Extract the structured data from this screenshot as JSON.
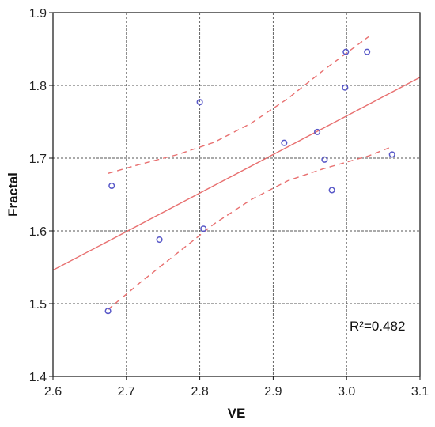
{
  "chart_data": {
    "type": "scatter",
    "xlabel": "VE",
    "ylabel": "Fractal",
    "xlim": [
      2.6,
      3.1
    ],
    "ylim": [
      1.4,
      1.9
    ],
    "xticks": [
      "2.6",
      "2.7",
      "2.8",
      "2.9",
      "3.0",
      "3.1"
    ],
    "yticks": [
      "1.4",
      "1.5",
      "1.6",
      "1.7",
      "1.8",
      "1.9"
    ],
    "grid": true,
    "points": [
      {
        "x": 2.675,
        "y": 1.49
      },
      {
        "x": 2.68,
        "y": 1.662
      },
      {
        "x": 2.745,
        "y": 1.588
      },
      {
        "x": 2.8,
        "y": 1.777
      },
      {
        "x": 2.805,
        "y": 1.603
      },
      {
        "x": 2.915,
        "y": 1.721
      },
      {
        "x": 2.96,
        "y": 1.736
      },
      {
        "x": 2.97,
        "y": 1.698
      },
      {
        "x": 2.98,
        "y": 1.656
      },
      {
        "x": 2.998,
        "y": 1.797
      },
      {
        "x": 2.999,
        "y": 1.846
      },
      {
        "x": 3.028,
        "y": 1.846
      },
      {
        "x": 3.062,
        "y": 1.705
      }
    ],
    "fit_line": {
      "x": [
        2.6,
        3.1
      ],
      "y": [
        1.546,
        1.811
      ]
    },
    "ci_upper": {
      "x": [
        2.675,
        2.72,
        2.77,
        2.82,
        2.87,
        2.92,
        2.97,
        3.03
      ],
      "y": [
        1.679,
        1.692,
        1.705,
        1.722,
        1.748,
        1.782,
        1.822,
        1.867
      ]
    },
    "ci_lower": {
      "x": [
        2.675,
        2.72,
        2.77,
        2.82,
        2.87,
        2.92,
        2.97,
        3.03,
        3.06
      ],
      "y": [
        1.492,
        1.53,
        1.57,
        1.61,
        1.643,
        1.669,
        1.686,
        1.703,
        1.715
      ]
    },
    "annotation": "R²=0.482",
    "colors": {
      "points": "#5858c8",
      "fit": "#e87070",
      "grid": "#555555",
      "frame": "#111111"
    }
  }
}
